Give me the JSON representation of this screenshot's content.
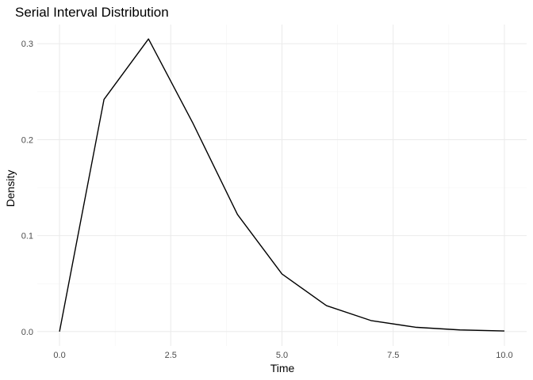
{
  "chart_data": {
    "type": "line",
    "title": "Serial Interval Distribution",
    "xlabel": "Time",
    "ylabel": "Density",
    "xlim": [
      -0.5,
      10.5
    ],
    "ylim": [
      -0.015,
      0.32
    ],
    "x_ticks": [
      0.0,
      2.5,
      5.0,
      7.5,
      10.0
    ],
    "x_tick_labels": [
      "0.0",
      "2.5",
      "5.0",
      "7.5",
      "10.0"
    ],
    "x_minor_ticks": [
      1.25,
      3.75,
      6.25,
      8.75
    ],
    "y_ticks": [
      0.0,
      0.1,
      0.2,
      0.3
    ],
    "y_tick_labels": [
      "0.0",
      "0.1",
      "0.2",
      "0.3"
    ],
    "y_minor_ticks": [
      0.05,
      0.15,
      0.25
    ],
    "grid": true,
    "legend": "none",
    "colors": {
      "line": "#000000",
      "grid": "#ebebeb",
      "background": "#ffffff"
    },
    "series": [
      {
        "x": [
          0,
          1,
          2,
          3,
          4,
          5,
          6,
          7,
          8,
          9,
          10
        ],
        "values": [
          0.0,
          0.242,
          0.305,
          0.217,
          0.122,
          0.06,
          0.027,
          0.0115,
          0.0045,
          0.0017,
          0.0006
        ]
      }
    ]
  }
}
